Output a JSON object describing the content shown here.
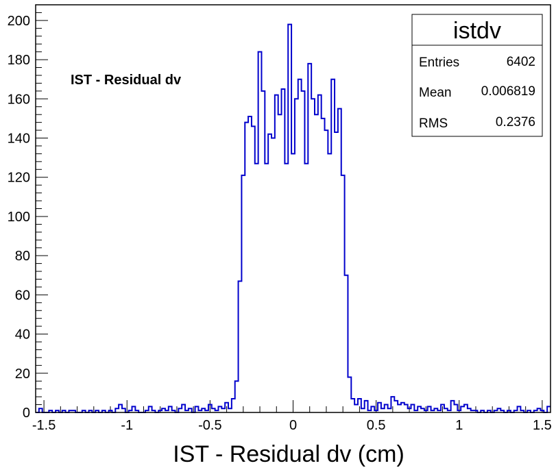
{
  "chart_data": {
    "type": "histogram",
    "title": "IST - Residual dv",
    "xlabel": "IST - Residual dv (cm)",
    "ylabel": "",
    "xlim": [
      -1.55,
      1.55
    ],
    "ylim": [
      0,
      208
    ],
    "bin_width": 0.02,
    "x_ticks": [
      -1.5,
      -1,
      -0.5,
      0,
      0.5,
      1,
      1.5
    ],
    "x_tick_labels": [
      "-1.5",
      "-1",
      "-0.5",
      "0",
      "0.5",
      "1",
      "1.5"
    ],
    "y_ticks": [
      0,
      20,
      40,
      60,
      80,
      100,
      120,
      140,
      160,
      180,
      200
    ],
    "y_tick_labels": [
      "0",
      "20",
      "40",
      "60",
      "80",
      "100",
      "120",
      "140",
      "160",
      "180",
      "200"
    ],
    "line_color": "#0000cc",
    "bins": [
      {
        "x": -1.55,
        "y": 0
      },
      {
        "x": -1.53,
        "y": 2
      },
      {
        "x": -1.51,
        "y": 0
      },
      {
        "x": -1.49,
        "y": 0
      },
      {
        "x": -1.47,
        "y": 1
      },
      {
        "x": -1.45,
        "y": 0
      },
      {
        "x": -1.43,
        "y": 1
      },
      {
        "x": -1.41,
        "y": 0
      },
      {
        "x": -1.39,
        "y": 1
      },
      {
        "x": -1.37,
        "y": 0
      },
      {
        "x": -1.35,
        "y": 1
      },
      {
        "x": -1.33,
        "y": 1
      },
      {
        "x": -1.31,
        "y": 0
      },
      {
        "x": -1.29,
        "y": 0
      },
      {
        "x": -1.27,
        "y": 1
      },
      {
        "x": -1.25,
        "y": 0
      },
      {
        "x": -1.23,
        "y": 1
      },
      {
        "x": -1.21,
        "y": 0
      },
      {
        "x": -1.19,
        "y": 1
      },
      {
        "x": -1.17,
        "y": 0
      },
      {
        "x": -1.15,
        "y": 1
      },
      {
        "x": -1.13,
        "y": 0
      },
      {
        "x": -1.11,
        "y": 1
      },
      {
        "x": -1.09,
        "y": 0
      },
      {
        "x": -1.07,
        "y": 2
      },
      {
        "x": -1.05,
        "y": 4
      },
      {
        "x": -1.03,
        "y": 2
      },
      {
        "x": -1.01,
        "y": 0
      },
      {
        "x": -0.99,
        "y": 1
      },
      {
        "x": -0.97,
        "y": 3
      },
      {
        "x": -0.95,
        "y": 1
      },
      {
        "x": -0.93,
        "y": 0
      },
      {
        "x": -0.91,
        "y": 0
      },
      {
        "x": -0.89,
        "y": 1
      },
      {
        "x": -0.87,
        "y": 3
      },
      {
        "x": -0.85,
        "y": 1
      },
      {
        "x": -0.83,
        "y": 0
      },
      {
        "x": -0.81,
        "y": 1
      },
      {
        "x": -0.79,
        "y": 2
      },
      {
        "x": -0.77,
        "y": 1
      },
      {
        "x": -0.75,
        "y": 3
      },
      {
        "x": -0.73,
        "y": 1
      },
      {
        "x": -0.71,
        "y": 0
      },
      {
        "x": -0.69,
        "y": 2
      },
      {
        "x": -0.67,
        "y": 4
      },
      {
        "x": -0.65,
        "y": 1
      },
      {
        "x": -0.63,
        "y": 2
      },
      {
        "x": -0.61,
        "y": 0
      },
      {
        "x": -0.59,
        "y": 3
      },
      {
        "x": -0.57,
        "y": 1
      },
      {
        "x": -0.55,
        "y": 2
      },
      {
        "x": -0.53,
        "y": 1
      },
      {
        "x": -0.51,
        "y": 4
      },
      {
        "x": -0.49,
        "y": 2
      },
      {
        "x": -0.47,
        "y": 1
      },
      {
        "x": -0.45,
        "y": 3
      },
      {
        "x": -0.43,
        "y": 2
      },
      {
        "x": -0.41,
        "y": 5
      },
      {
        "x": -0.39,
        "y": 2
      },
      {
        "x": -0.37,
        "y": 7
      },
      {
        "x": -0.35,
        "y": 16
      },
      {
        "x": -0.33,
        "y": 67
      },
      {
        "x": -0.31,
        "y": 121
      },
      {
        "x": -0.29,
        "y": 148
      },
      {
        "x": -0.27,
        "y": 151
      },
      {
        "x": -0.25,
        "y": 146
      },
      {
        "x": -0.23,
        "y": 127
      },
      {
        "x": -0.21,
        "y": 184
      },
      {
        "x": -0.19,
        "y": 164
      },
      {
        "x": -0.17,
        "y": 127
      },
      {
        "x": -0.15,
        "y": 142
      },
      {
        "x": -0.13,
        "y": 140
      },
      {
        "x": -0.11,
        "y": 162
      },
      {
        "x": -0.09,
        "y": 152
      },
      {
        "x": -0.07,
        "y": 165
      },
      {
        "x": -0.05,
        "y": 127
      },
      {
        "x": -0.03,
        "y": 198
      },
      {
        "x": -0.01,
        "y": 132
      },
      {
        "x": 0.01,
        "y": 160
      },
      {
        "x": 0.03,
        "y": 170
      },
      {
        "x": 0.05,
        "y": 164
      },
      {
        "x": 0.07,
        "y": 127
      },
      {
        "x": 0.09,
        "y": 178
      },
      {
        "x": 0.11,
        "y": 160
      },
      {
        "x": 0.13,
        "y": 152
      },
      {
        "x": 0.15,
        "y": 162
      },
      {
        "x": 0.17,
        "y": 150
      },
      {
        "x": 0.19,
        "y": 144
      },
      {
        "x": 0.21,
        "y": 132
      },
      {
        "x": 0.23,
        "y": 170
      },
      {
        "x": 0.25,
        "y": 143
      },
      {
        "x": 0.27,
        "y": 155
      },
      {
        "x": 0.29,
        "y": 121
      },
      {
        "x": 0.31,
        "y": 70
      },
      {
        "x": 0.33,
        "y": 18
      },
      {
        "x": 0.35,
        "y": 7
      },
      {
        "x": 0.37,
        "y": 4
      },
      {
        "x": 0.39,
        "y": 7
      },
      {
        "x": 0.41,
        "y": 2
      },
      {
        "x": 0.43,
        "y": 6
      },
      {
        "x": 0.45,
        "y": 1
      },
      {
        "x": 0.47,
        "y": 3
      },
      {
        "x": 0.49,
        "y": 1
      },
      {
        "x": 0.51,
        "y": 5
      },
      {
        "x": 0.53,
        "y": 2
      },
      {
        "x": 0.55,
        "y": 4
      },
      {
        "x": 0.57,
        "y": 2
      },
      {
        "x": 0.59,
        "y": 8
      },
      {
        "x": 0.61,
        "y": 6
      },
      {
        "x": 0.63,
        "y": 4
      },
      {
        "x": 0.65,
        "y": 5
      },
      {
        "x": 0.67,
        "y": 4
      },
      {
        "x": 0.69,
        "y": 2
      },
      {
        "x": 0.71,
        "y": 4
      },
      {
        "x": 0.73,
        "y": 1
      },
      {
        "x": 0.75,
        "y": 3
      },
      {
        "x": 0.77,
        "y": 2
      },
      {
        "x": 0.79,
        "y": 1
      },
      {
        "x": 0.81,
        "y": 3
      },
      {
        "x": 0.83,
        "y": 1
      },
      {
        "x": 0.85,
        "y": 2
      },
      {
        "x": 0.87,
        "y": 1
      },
      {
        "x": 0.89,
        "y": 4
      },
      {
        "x": 0.91,
        "y": 2
      },
      {
        "x": 0.93,
        "y": 1
      },
      {
        "x": 0.95,
        "y": 6
      },
      {
        "x": 0.97,
        "y": 4
      },
      {
        "x": 0.99,
        "y": 1
      },
      {
        "x": 1.01,
        "y": 3
      },
      {
        "x": 1.03,
        "y": 4
      },
      {
        "x": 1.05,
        "y": 2
      },
      {
        "x": 1.07,
        "y": 1
      },
      {
        "x": 1.09,
        "y": 1
      },
      {
        "x": 1.11,
        "y": 0
      },
      {
        "x": 1.13,
        "y": 1
      },
      {
        "x": 1.15,
        "y": 0
      },
      {
        "x": 1.17,
        "y": 1
      },
      {
        "x": 1.19,
        "y": 0
      },
      {
        "x": 1.21,
        "y": 1
      },
      {
        "x": 1.23,
        "y": 2
      },
      {
        "x": 1.25,
        "y": 1
      },
      {
        "x": 1.27,
        "y": 0
      },
      {
        "x": 1.29,
        "y": 1
      },
      {
        "x": 1.31,
        "y": 0
      },
      {
        "x": 1.33,
        "y": 1
      },
      {
        "x": 1.35,
        "y": 3
      },
      {
        "x": 1.37,
        "y": 1
      },
      {
        "x": 1.39,
        "y": 0
      },
      {
        "x": 1.41,
        "y": 1
      },
      {
        "x": 1.43,
        "y": 0
      },
      {
        "x": 1.45,
        "y": 1
      },
      {
        "x": 1.47,
        "y": 2
      },
      {
        "x": 1.49,
        "y": 1
      },
      {
        "x": 1.51,
        "y": 0
      },
      {
        "x": 1.53,
        "y": 3
      }
    ]
  },
  "stats_box": {
    "name": "istdv",
    "rows": [
      {
        "label": "Entries",
        "value": "6402"
      },
      {
        "label": "Mean",
        "value": "0.006819"
      },
      {
        "label": "RMS",
        "value": "0.2376"
      }
    ]
  }
}
